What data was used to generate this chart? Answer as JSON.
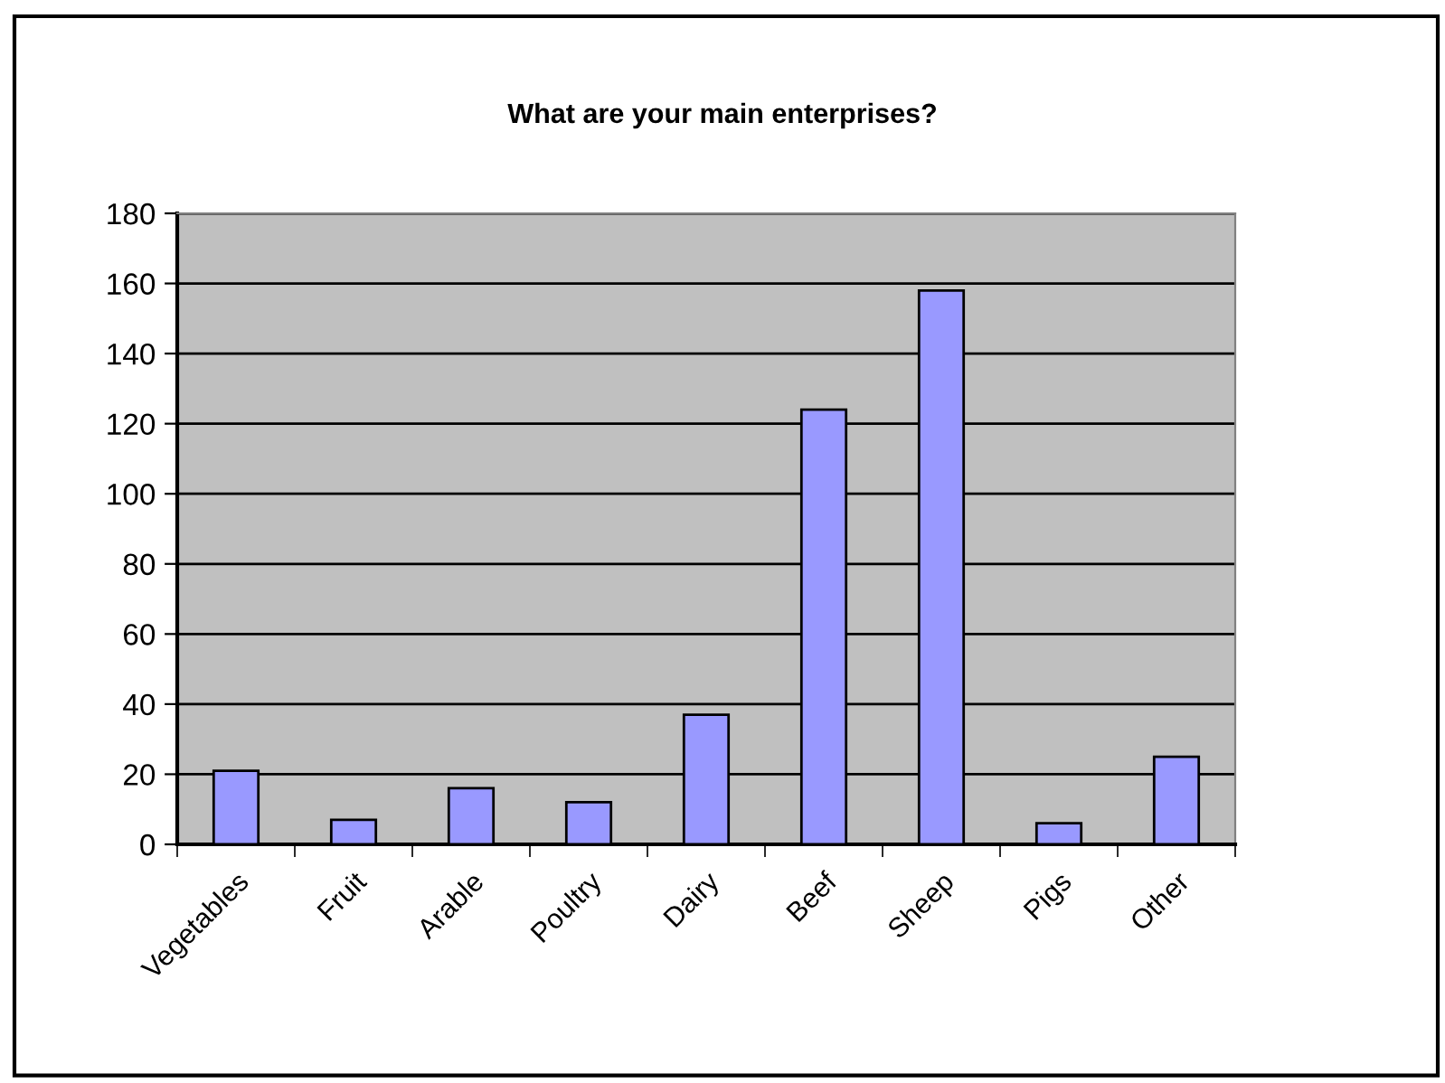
{
  "chart_data": {
    "type": "bar",
    "title": "What are your main enterprises?",
    "categories": [
      "Vegetables",
      "Fruit",
      "Arable",
      "Poultry",
      "Dairy",
      "Beef",
      "Sheep",
      "Pigs",
      "Other"
    ],
    "values": [
      21,
      7,
      16,
      12,
      37,
      124,
      158,
      6,
      25
    ],
    "color": "#9999ff",
    "ylim": [
      0,
      180
    ],
    "yticks": [
      0,
      20,
      40,
      60,
      80,
      100,
      120,
      140,
      160,
      180
    ],
    "grid": "y",
    "legend": false
  }
}
